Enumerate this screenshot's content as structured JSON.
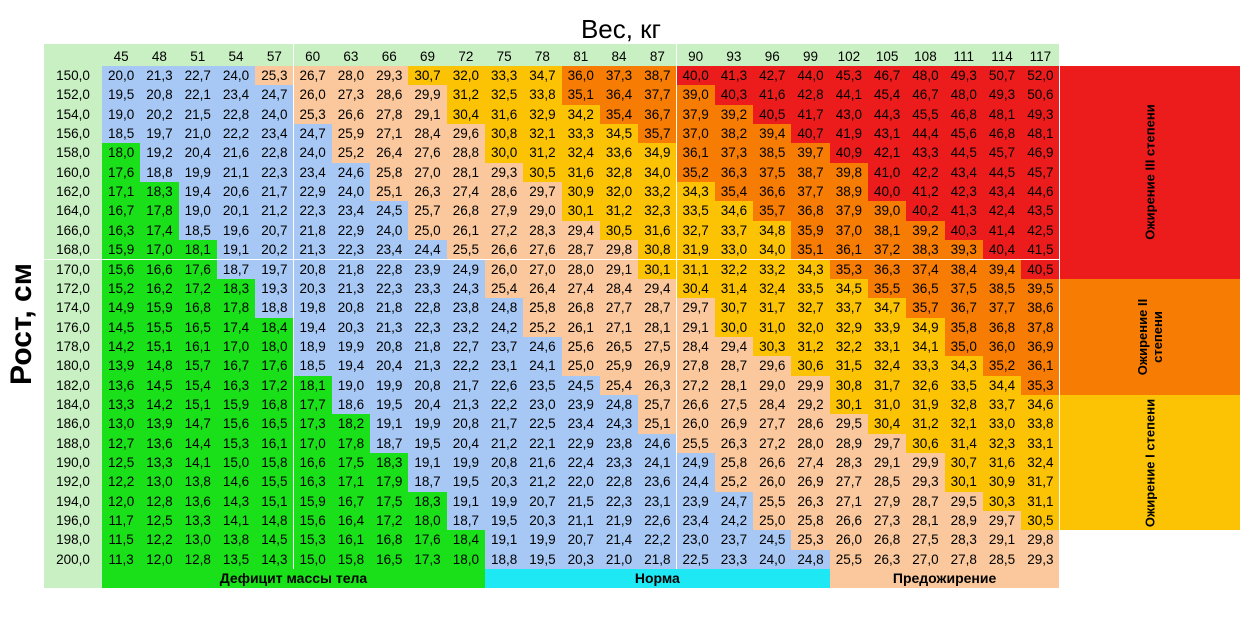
{
  "chart_data": {
    "type": "table",
    "xlabel": "Вес, кг",
    "ylabel": "Рост, см",
    "weights": [
      "45",
      "48",
      "51",
      "54",
      "57",
      "60",
      "63",
      "66",
      "69",
      "72",
      "75",
      "78",
      "81",
      "84",
      "87",
      "90",
      "93",
      "96",
      "99",
      "102",
      "105",
      "108",
      "111",
      "114",
      "117"
    ],
    "heights": [
      "150,0",
      "152,0",
      "154,0",
      "156,0",
      "158,0",
      "160,0",
      "162,0",
      "164,0",
      "166,0",
      "168,0",
      "170,0",
      "172,0",
      "174,0",
      "176,0",
      "178,0",
      "180,0",
      "182,0",
      "184,0",
      "186,0",
      "188,0",
      "190,0",
      "192,0",
      "194,0",
      "196,0",
      "198,0",
      "200,0"
    ],
    "values": [
      [
        "20,0",
        "21,3",
        "22,7",
        "24,0",
        "25,3",
        "26,7",
        "28,0",
        "29,3",
        "30,7",
        "32,0",
        "33,3",
        "34,7",
        "36,0",
        "37,3",
        "38,7",
        "40,0",
        "41,3",
        "42,7",
        "44,0",
        "45,3",
        "46,7",
        "48,0",
        "49,3",
        "50,7",
        "52,0"
      ],
      [
        "19,5",
        "20,8",
        "22,1",
        "23,4",
        "24,7",
        "26,0",
        "27,3",
        "28,6",
        "29,9",
        "31,2",
        "32,5",
        "33,8",
        "35,1",
        "36,4",
        "37,7",
        "39,0",
        "40,3",
        "41,6",
        "42,8",
        "44,1",
        "45,4",
        "46,7",
        "48,0",
        "49,3",
        "50,6"
      ],
      [
        "19,0",
        "20,2",
        "21,5",
        "22,8",
        "24,0",
        "25,3",
        "26,6",
        "27,8",
        "29,1",
        "30,4",
        "31,6",
        "32,9",
        "34,2",
        "35,4",
        "36,7",
        "37,9",
        "39,2",
        "40,5",
        "41,7",
        "43,0",
        "44,3",
        "45,5",
        "46,8",
        "48,1",
        "49,3"
      ],
      [
        "18,5",
        "19,7",
        "21,0",
        "22,2",
        "23,4",
        "24,7",
        "25,9",
        "27,1",
        "28,4",
        "29,6",
        "30,8",
        "32,1",
        "33,3",
        "34,5",
        "35,7",
        "37,0",
        "38,2",
        "39,4",
        "40,7",
        "41,9",
        "43,1",
        "44,4",
        "45,6",
        "46,8",
        "48,1"
      ],
      [
        "18,0",
        "19,2",
        "20,4",
        "21,6",
        "22,8",
        "24,0",
        "25,2",
        "26,4",
        "27,6",
        "28,8",
        "30,0",
        "31,2",
        "32,4",
        "33,6",
        "34,9",
        "36,1",
        "37,3",
        "38,5",
        "39,7",
        "40,9",
        "42,1",
        "43,3",
        "44,5",
        "45,7",
        "46,9"
      ],
      [
        "17,6",
        "18,8",
        "19,9",
        "21,1",
        "22,3",
        "23,4",
        "24,6",
        "25,8",
        "27,0",
        "28,1",
        "29,3",
        "30,5",
        "31,6",
        "32,8",
        "34,0",
        "35,2",
        "36,3",
        "37,5",
        "38,7",
        "39,8",
        "41,0",
        "42,2",
        "43,4",
        "44,5",
        "45,7"
      ],
      [
        "17,1",
        "18,3",
        "19,4",
        "20,6",
        "21,7",
        "22,9",
        "24,0",
        "25,1",
        "26,3",
        "27,4",
        "28,6",
        "29,7",
        "30,9",
        "32,0",
        "33,2",
        "34,3",
        "35,4",
        "36,6",
        "37,7",
        "38,9",
        "40,0",
        "41,2",
        "42,3",
        "43,4",
        "44,6"
      ],
      [
        "16,7",
        "17,8",
        "19,0",
        "20,1",
        "21,2",
        "22,3",
        "23,4",
        "24,5",
        "25,7",
        "26,8",
        "27,9",
        "29,0",
        "30,1",
        "31,2",
        "32,3",
        "33,5",
        "34,6",
        "35,7",
        "36,8",
        "37,9",
        "39,0",
        "40,2",
        "41,3",
        "42,4",
        "43,5"
      ],
      [
        "16,3",
        "17,4",
        "18,5",
        "19,6",
        "20,7",
        "21,8",
        "22,9",
        "24,0",
        "25,0",
        "26,1",
        "27,2",
        "28,3",
        "29,4",
        "30,5",
        "31,6",
        "32,7",
        "33,7",
        "34,8",
        "35,9",
        "37,0",
        "38,1",
        "39,2",
        "40,3",
        "41,4",
        "42,5"
      ],
      [
        "15,9",
        "17,0",
        "18,1",
        "19,1",
        "20,2",
        "21,3",
        "22,3",
        "23,4",
        "24,4",
        "25,5",
        "26,6",
        "27,6",
        "28,7",
        "29,8",
        "30,8",
        "31,9",
        "33,0",
        "34,0",
        "35,1",
        "36,1",
        "37,2",
        "38,3",
        "39,3",
        "40,4",
        "41,5"
      ],
      [
        "15,6",
        "16,6",
        "17,6",
        "18,7",
        "19,7",
        "20,8",
        "21,8",
        "22,8",
        "23,9",
        "24,9",
        "26,0",
        "27,0",
        "28,0",
        "29,1",
        "30,1",
        "31,1",
        "32,2",
        "33,2",
        "34,3",
        "35,3",
        "36,3",
        "37,4",
        "38,4",
        "39,4",
        "40,5"
      ],
      [
        "15,2",
        "16,2",
        "17,2",
        "18,3",
        "19,3",
        "20,3",
        "21,3",
        "22,3",
        "23,3",
        "24,3",
        "25,4",
        "26,4",
        "27,4",
        "28,4",
        "29,4",
        "30,4",
        "31,4",
        "32,4",
        "33,5",
        "34,5",
        "35,5",
        "36,5",
        "37,5",
        "38,5",
        "39,5"
      ],
      [
        "14,9",
        "15,9",
        "16,8",
        "17,8",
        "18,8",
        "19,8",
        "20,8",
        "21,8",
        "22,8",
        "23,8",
        "24,8",
        "25,8",
        "26,8",
        "27,7",
        "28,7",
        "29,7",
        "30,7",
        "31,7",
        "32,7",
        "33,7",
        "34,7",
        "35,7",
        "36,7",
        "37,7",
        "38,6"
      ],
      [
        "14,5",
        "15,5",
        "16,5",
        "17,4",
        "18,4",
        "19,4",
        "20,3",
        "21,3",
        "22,3",
        "23,2",
        "24,2",
        "25,2",
        "26,1",
        "27,1",
        "28,1",
        "29,1",
        "30,0",
        "31,0",
        "32,0",
        "32,9",
        "33,9",
        "34,9",
        "35,8",
        "36,8",
        "37,8"
      ],
      [
        "14,2",
        "15,1",
        "16,1",
        "17,0",
        "18,0",
        "18,9",
        "19,9",
        "20,8",
        "21,8",
        "22,7",
        "23,7",
        "24,6",
        "25,6",
        "26,5",
        "27,5",
        "28,4",
        "29,4",
        "30,3",
        "31,2",
        "32,2",
        "33,1",
        "34,1",
        "35,0",
        "36,0",
        "36,9"
      ],
      [
        "13,9",
        "14,8",
        "15,7",
        "16,7",
        "17,6",
        "18,5",
        "19,4",
        "20,4",
        "21,3",
        "22,2",
        "23,1",
        "24,1",
        "25,0",
        "25,9",
        "26,9",
        "27,8",
        "28,7",
        "29,6",
        "30,6",
        "31,5",
        "32,4",
        "33,3",
        "34,3",
        "35,2",
        "36,1"
      ],
      [
        "13,6",
        "14,5",
        "15,4",
        "16,3",
        "17,2",
        "18,1",
        "19,0",
        "19,9",
        "20,8",
        "21,7",
        "22,6",
        "23,5",
        "24,5",
        "25,4",
        "26,3",
        "27,2",
        "28,1",
        "29,0",
        "29,9",
        "30,8",
        "31,7",
        "32,6",
        "33,5",
        "34,4",
        "35,3"
      ],
      [
        "13,3",
        "14,2",
        "15,1",
        "15,9",
        "16,8",
        "17,7",
        "18,6",
        "19,5",
        "20,4",
        "21,3",
        "22,2",
        "23,0",
        "23,9",
        "24,8",
        "25,7",
        "26,6",
        "27,5",
        "28,4",
        "29,2",
        "30,1",
        "31,0",
        "31,9",
        "32,8",
        "33,7",
        "34,6"
      ],
      [
        "13,0",
        "13,9",
        "14,7",
        "15,6",
        "16,5",
        "17,3",
        "18,2",
        "19,1",
        "19,9",
        "20,8",
        "21,7",
        "22,5",
        "23,4",
        "24,3",
        "25,1",
        "26,0",
        "26,9",
        "27,7",
        "28,6",
        "29,5",
        "30,4",
        "31,2",
        "32,1",
        "33,0",
        "33,8"
      ],
      [
        "12,7",
        "13,6",
        "14,4",
        "15,3",
        "16,1",
        "17,0",
        "17,8",
        "18,7",
        "19,5",
        "20,4",
        "21,2",
        "22,1",
        "22,9",
        "23,8",
        "24,6",
        "25,5",
        "26,3",
        "27,2",
        "28,0",
        "28,9",
        "29,7",
        "30,6",
        "31,4",
        "32,3",
        "33,1"
      ],
      [
        "12,5",
        "13,3",
        "14,1",
        "15,0",
        "15,8",
        "16,6",
        "17,5",
        "18,3",
        "19,1",
        "19,9",
        "20,8",
        "21,6",
        "22,4",
        "23,3",
        "24,1",
        "24,9",
        "25,8",
        "26,6",
        "27,4",
        "28,3",
        "29,1",
        "29,9",
        "30,7",
        "31,6",
        "32,4"
      ],
      [
        "12,2",
        "13,0",
        "13,8",
        "14,6",
        "15,5",
        "16,3",
        "17,1",
        "17,9",
        "18,7",
        "19,5",
        "20,3",
        "21,2",
        "22,0",
        "22,8",
        "23,6",
        "24,4",
        "25,2",
        "26,0",
        "26,9",
        "27,7",
        "28,5",
        "29,3",
        "30,1",
        "30,9",
        "31,7"
      ],
      [
        "12,0",
        "12,8",
        "13,6",
        "14,3",
        "15,1",
        "15,9",
        "16,7",
        "17,5",
        "18,3",
        "19,1",
        "19,9",
        "20,7",
        "21,5",
        "22,3",
        "23,1",
        "23,9",
        "24,7",
        "25,5",
        "26,3",
        "27,1",
        "27,9",
        "28,7",
        "29,5",
        "30,3",
        "31,1"
      ],
      [
        "11,7",
        "12,5",
        "13,3",
        "14,1",
        "14,8",
        "15,6",
        "16,4",
        "17,2",
        "18,0",
        "18,7",
        "19,5",
        "20,3",
        "21,1",
        "21,9",
        "22,6",
        "23,4",
        "24,2",
        "25,0",
        "25,8",
        "26,6",
        "27,3",
        "28,1",
        "28,9",
        "29,7",
        "30,5"
      ],
      [
        "11,5",
        "12,2",
        "13,0",
        "13,8",
        "14,5",
        "15,3",
        "16,1",
        "16,8",
        "17,6",
        "18,4",
        "19,1",
        "19,9",
        "20,7",
        "21,4",
        "22,2",
        "23,0",
        "23,7",
        "24,5",
        "25,3",
        "26,0",
        "26,8",
        "27,5",
        "28,3",
        "29,1",
        "29,8"
      ],
      [
        "11,3",
        "12,0",
        "12,8",
        "13,5",
        "14,3",
        "15,0",
        "15,8",
        "16,5",
        "17,3",
        "18,0",
        "18,8",
        "19,5",
        "20,3",
        "21,0",
        "21,8",
        "22,5",
        "23,3",
        "24,0",
        "24,8",
        "25,5",
        "26,3",
        "27,0",
        "27,8",
        "28,5",
        "29,3"
      ]
    ],
    "categories": [
      {
        "name": "Дефицит массы тела",
        "max": 18.5,
        "color": "#19e019"
      },
      {
        "name": "Норма",
        "max": 25,
        "color": "#a7c8f5"
      },
      {
        "name": "Предожирение",
        "max": 30,
        "color": "#fac89c"
      },
      {
        "name": "Ожирение I степени",
        "max": 35,
        "color": "#fbc304"
      },
      {
        "name": "Ожирение II степени",
        "max": 40,
        "color": "#f67c04"
      },
      {
        "name": "Ожирение III степени",
        "max": 999,
        "color": "#ec1c1c"
      }
    ],
    "header_color": "#c9f0c2",
    "band_colors": [
      "#19e019",
      "#1fe8f5",
      "#fac89c"
    ]
  }
}
